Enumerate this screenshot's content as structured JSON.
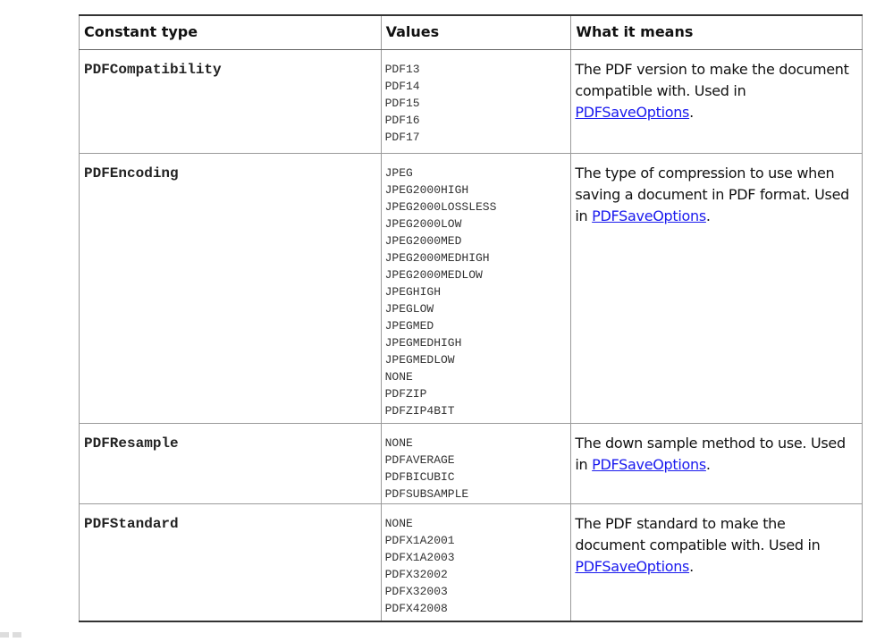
{
  "table": {
    "headers": [
      "Constant type",
      "Values",
      "What it means"
    ],
    "rows": [
      {
        "type": "PDFCompatibility",
        "values": [
          "PDF13",
          "PDF14",
          "PDF15",
          "PDF16",
          "PDF17"
        ],
        "desc_before": "The PDF version to make the document compatible with. Used in ",
        "link": "PDFSaveOptions",
        "desc_after": "."
      },
      {
        "type": "PDFEncoding",
        "values": [
          "JPEG",
          "JPEG2000HIGH",
          "JPEG2000LOSSLESS",
          "JPEG2000LOW",
          "JPEG2000MED",
          "JPEG2000MEDHIGH",
          "JPEG2000MEDLOW",
          "JPEGHIGH",
          "JPEGLOW",
          "JPEGMED",
          "JPEGMEDHIGH",
          "JPEGMEDLOW",
          "NONE",
          "PDFZIP",
          "PDFZIP4BIT"
        ],
        "desc_before": "The type of compression to use when saving a document in PDF format. Used in ",
        "link": "PDFSaveOptions",
        "desc_after": "."
      },
      {
        "type": "PDFResample",
        "values": [
          "NONE",
          "PDFAVERAGE",
          "PDFBICUBIC",
          "PDFSUBSAMPLE"
        ],
        "desc_before": "The down sample method to use. Used in ",
        "link": "PDFSaveOptions",
        "desc_after": "."
      },
      {
        "type": "PDFStandard",
        "values": [
          "NONE",
          "PDFX1A2001",
          "PDFX1A2003",
          "PDFX32002",
          "PDFX32003",
          "PDFX42008"
        ],
        "desc_before": "The PDF standard to make the document compatible with. Used in ",
        "link": "PDFSaveOptions",
        "desc_after": "."
      }
    ]
  },
  "colors": {
    "link": "#1a1aee"
  }
}
